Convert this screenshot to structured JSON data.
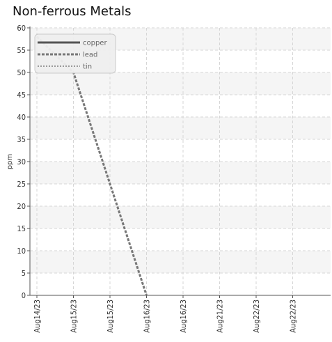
{
  "chart_data": {
    "type": "line",
    "title": "Non-ferrous Metals",
    "xlabel": "",
    "ylabel": "ppm",
    "categories": [
      "Aug14/23",
      "Aug15/23",
      "Aug15/23",
      "Aug16/23",
      "Aug16/23",
      "Aug21/23",
      "Aug22/23",
      "Aug22/23"
    ],
    "ylim": [
      0,
      60
    ],
    "yticks": [
      0,
      5,
      10,
      15,
      20,
      25,
      30,
      35,
      40,
      45,
      50,
      55,
      60
    ],
    "series": [
      {
        "name": "copper",
        "values": [
          null,
          null,
          null,
          null,
          null,
          null,
          null,
          null
        ],
        "color": "#555555",
        "style": "solid"
      },
      {
        "name": "lead",
        "values": [
          58,
          50,
          25,
          0,
          null,
          null,
          null,
          null
        ],
        "color": "#777777",
        "style": "dotted"
      },
      {
        "name": "tin",
        "values": [
          null,
          null,
          null,
          null,
          null,
          null,
          null,
          null
        ],
        "color": "#999999",
        "style": "dotted-light"
      }
    ],
    "grid": true,
    "legend": "top-left"
  }
}
